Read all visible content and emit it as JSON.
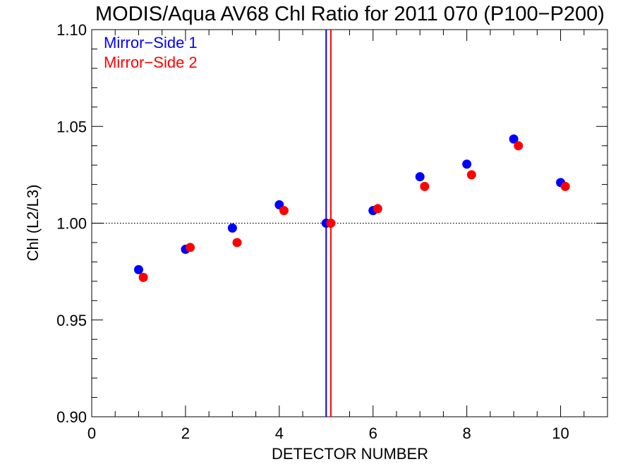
{
  "chart_data": {
    "type": "scatter",
    "title": "MODIS/Aqua AV68 Chl Ratio for 2011 070 (P100−P200)",
    "xlabel": "DETECTOR NUMBER",
    "ylabel": "Chl (L2/L3)",
    "xlim": [
      0,
      11
    ],
    "ylim": [
      0.9,
      1.1
    ],
    "x_ticks": [
      "0",
      "2",
      "4",
      "6",
      "8",
      "10"
    ],
    "y_ticks": [
      "0.90",
      "0.95",
      "1.00",
      "1.05",
      "1.10"
    ],
    "reference_line_y": 1.0,
    "legend_position": "top-left",
    "series": [
      {
        "name": "Mirror−Side 1",
        "color": "#0000ff",
        "x": [
          1,
          2,
          3,
          4,
          5,
          6,
          7,
          8,
          9,
          10
        ],
        "y": [
          0.976,
          0.9865,
          0.9975,
          1.0095,
          1.0,
          1.0065,
          1.024,
          1.0305,
          1.0435,
          1.021
        ],
        "vertical_line_x": 5.0
      },
      {
        "name": "Mirror−Side 2",
        "color": "#ff0000",
        "x": [
          1.1,
          2.1,
          3.1,
          4.1,
          5.1,
          6.1,
          7.1,
          8.1,
          9.1,
          10.1
        ],
        "y": [
          0.972,
          0.9875,
          0.99,
          1.0065,
          1.0,
          1.0075,
          1.019,
          1.025,
          1.04,
          1.019
        ],
        "vertical_line_x": 5.1
      }
    ]
  }
}
